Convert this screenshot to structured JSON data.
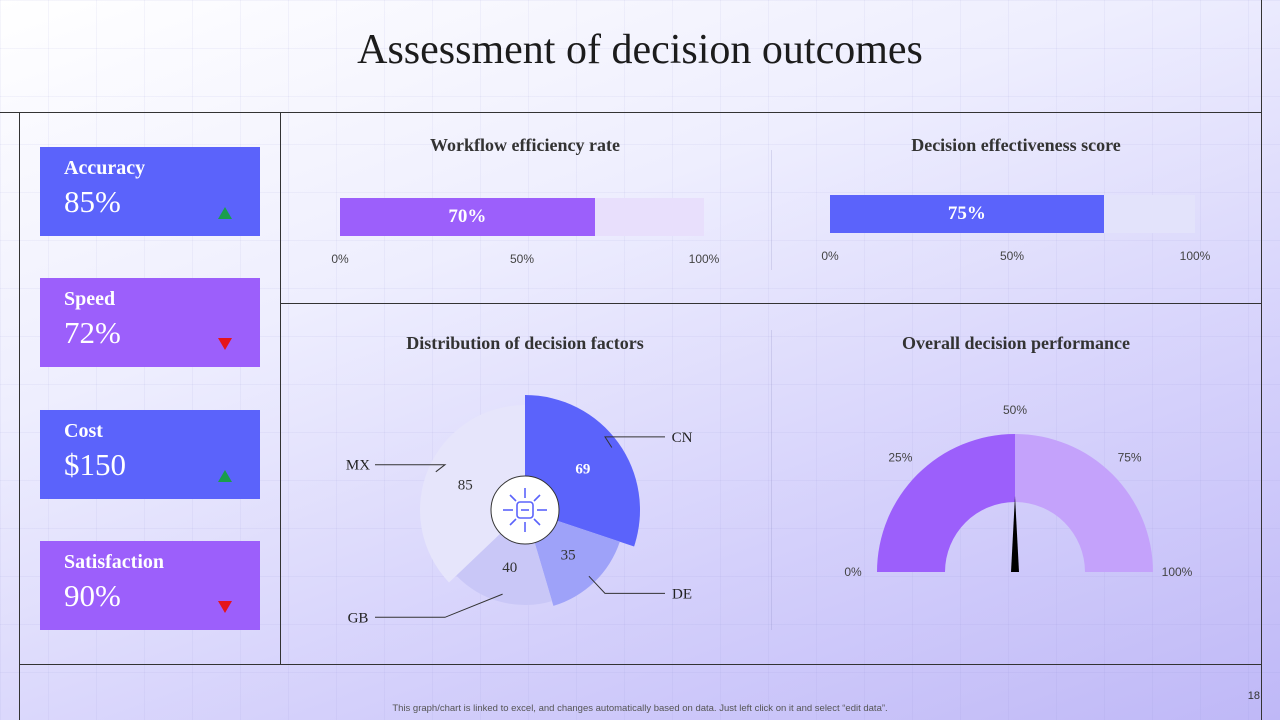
{
  "title": "Assessment of decision outcomes",
  "kpis": [
    {
      "label": "Accuracy",
      "value": "85%",
      "trend": "up"
    },
    {
      "label": "Speed",
      "value": "72%",
      "trend": "down"
    },
    {
      "label": "Cost",
      "value": "$150",
      "trend": "up"
    },
    {
      "label": "Satisfaction",
      "value": "90%",
      "trend": "down"
    }
  ],
  "colors": {
    "blue": "#5b63fb",
    "purple": "#9c5ffb",
    "up": "#1a9e4b",
    "down": "#e5141a"
  },
  "footer_note": "This graph/chart is linked to excel, and changes automatically based on data. Just left click on it and select “edit data”.",
  "page_number": "18",
  "center_icon": "network-hub-icon",
  "chart_data": [
    {
      "type": "bar",
      "title": "Workflow efficiency rate",
      "value": 70,
      "value_label": "70%",
      "xlim": [
        0,
        100
      ],
      "ticks": [
        "0%",
        "50%",
        "100%"
      ]
    },
    {
      "type": "bar",
      "title": "Decision effectiveness score",
      "value": 75,
      "value_label": "75%",
      "xlim": [
        0,
        100
      ],
      "ticks": [
        "0%",
        "50%",
        "100%"
      ]
    },
    {
      "type": "pie",
      "title": "Distribution of decision factors",
      "categories": [
        "CN",
        "DE",
        "GB",
        "MX"
      ],
      "values": [
        69,
        35,
        40,
        85
      ]
    },
    {
      "type": "gauge",
      "title": "Overall decision performance",
      "value": 50,
      "range": [
        0,
        100
      ],
      "ticks": [
        "0%",
        "25%",
        "50%",
        "75%",
        "100%"
      ]
    }
  ]
}
